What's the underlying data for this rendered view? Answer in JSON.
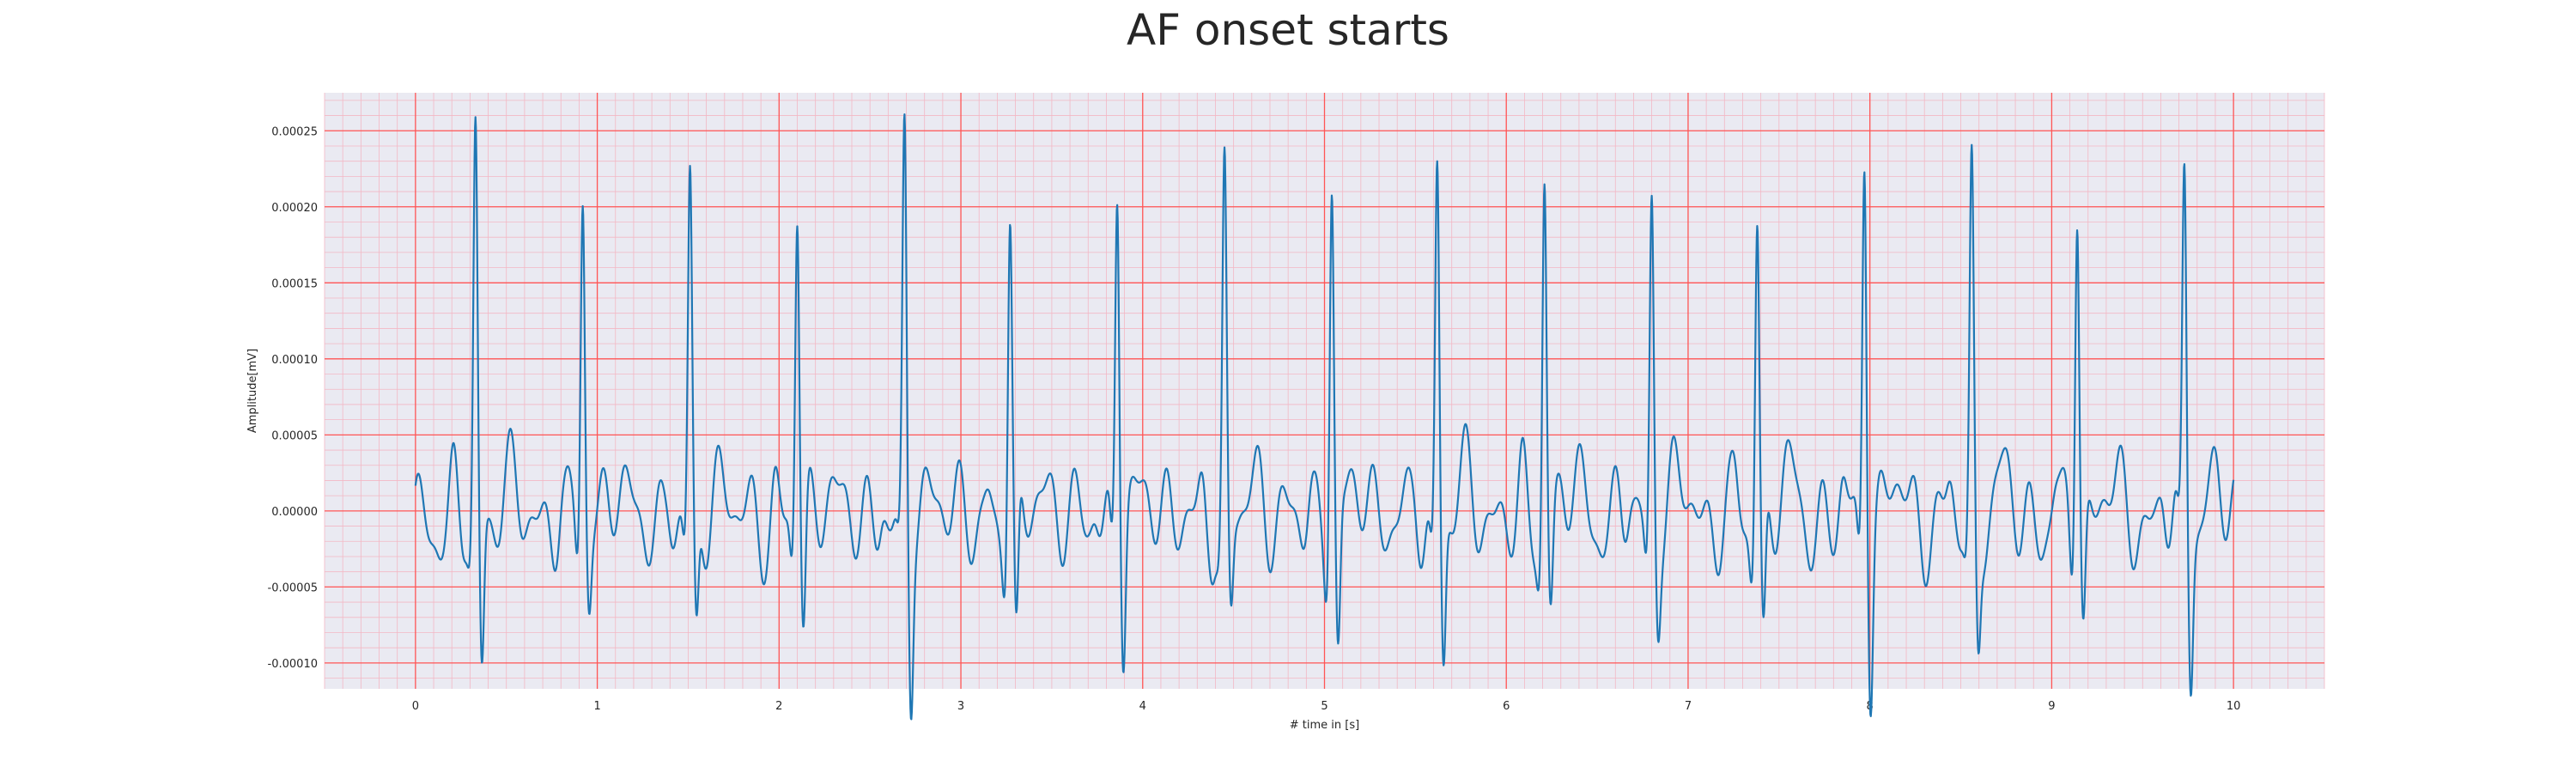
{
  "chart_data": {
    "type": "line",
    "title": "AF onset starts",
    "xlabel": "# time in [s]",
    "ylabel": "Amplitude[mV]",
    "xlim": [
      -0.5,
      10.5
    ],
    "ylim": [
      -0.000117,
      0.000275
    ],
    "x_ticks": [
      0,
      1,
      2,
      3,
      4,
      5,
      6,
      7,
      8,
      9,
      10
    ],
    "x_tick_labels": [
      "0",
      "1",
      "2",
      "3",
      "4",
      "5",
      "6",
      "7",
      "8",
      "9",
      "10"
    ],
    "y_ticks": [
      -0.0001,
      -5e-05,
      0,
      5e-05,
      0.0001,
      0.00015,
      0.0002,
      0.00025
    ],
    "y_tick_labels": [
      "-0.00010",
      "-0.00005",
      "0.00000",
      "0.00005",
      "0.00010",
      "0.00015",
      "0.00020",
      "0.00025"
    ],
    "grid": true,
    "grid_color_major": "#ff5555",
    "grid_color_minor": "#f3b7c4",
    "background": "#eaeaf2",
    "series": [
      {
        "color": "#1f77b4",
        "x_start": 0,
        "x_end": 10,
        "r_peaks": [
          {
            "t": 0.33,
            "amp": 0.00025,
            "s": -9.2e-05
          },
          {
            "t": 0.92,
            "amp": 0.000215,
            "s": -4e-05
          },
          {
            "t": 1.51,
            "amp": 0.000218,
            "s": -7e-05
          },
          {
            "t": 2.1,
            "amp": 0.000211,
            "s": -6.8e-05
          },
          {
            "t": 2.69,
            "amp": 0.000246,
            "s": -0.0001
          },
          {
            "t": 3.27,
            "amp": 0.0002,
            "s": -9.2e-05
          },
          {
            "t": 3.86,
            "amp": 0.000229,
            "s": -7.5e-05
          },
          {
            "t": 4.45,
            "amp": 0.000218,
            "s": -5.2e-05
          },
          {
            "t": 5.04,
            "amp": 0.000235,
            "s": -8.2e-05
          },
          {
            "t": 5.62,
            "amp": 0.000238,
            "s": -8.3e-05
          },
          {
            "t": 6.21,
            "amp": 0.000236,
            "s": -4.8e-05
          },
          {
            "t": 6.8,
            "amp": 0.000219,
            "s": -4.3e-05
          },
          {
            "t": 7.38,
            "amp": 0.000208,
            "s": -7.6e-05
          },
          {
            "t": 7.97,
            "amp": 0.000258,
            "s": -8.6e-05
          },
          {
            "t": 8.56,
            "amp": 0.000221,
            "s": -6.6e-05
          },
          {
            "t": 9.14,
            "amp": 0.000225,
            "s": -6.3e-05
          },
          {
            "t": 9.73,
            "amp": 0.000228,
            "s": -8.2e-05
          }
        ]
      }
    ]
  }
}
